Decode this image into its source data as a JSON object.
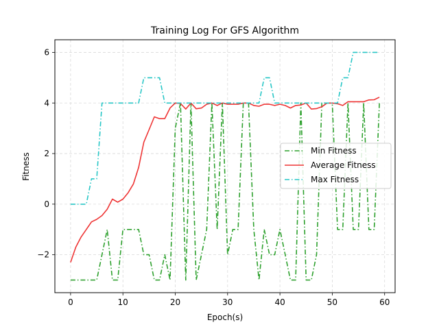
{
  "chart_data": {
    "type": "line",
    "title": "Training Log For GFS Algorithm",
    "xlabel": "Epoch(s)",
    "ylabel": "Fitness",
    "xlim": [
      -3,
      62
    ],
    "ylim": [
      -3.5,
      6.5
    ],
    "xticks": [
      0,
      10,
      20,
      30,
      40,
      50,
      60
    ],
    "yticks": [
      -2,
      0,
      2,
      4,
      6
    ],
    "grid": true,
    "legend_position": "center-right",
    "x": [
      0,
      1,
      2,
      3,
      4,
      5,
      6,
      7,
      8,
      9,
      10,
      11,
      12,
      13,
      14,
      15,
      16,
      17,
      18,
      19,
      20,
      21,
      22,
      23,
      24,
      25,
      26,
      27,
      28,
      29,
      30,
      31,
      32,
      33,
      34,
      35,
      36,
      37,
      38,
      39,
      40,
      41,
      42,
      43,
      44,
      45,
      46,
      47,
      48,
      49,
      50,
      51,
      52,
      53,
      54,
      55,
      56,
      57,
      58,
      59
    ],
    "series": [
      {
        "name": "Min Fitness",
        "color": "#2ca02c",
        "dash": "dashdot",
        "values": [
          -3,
          -3,
          -3,
          -3,
          -3,
          -3,
          -2,
          -1,
          -3,
          -3,
          -1,
          -1,
          -1,
          -1,
          -2,
          -2,
          -3,
          -3,
          -2,
          -3,
          3,
          4,
          -3,
          4,
          -3,
          -2,
          -1,
          4,
          -1,
          4,
          -2,
          -1,
          -1,
          4,
          4,
          -1,
          -3,
          -1,
          -2,
          -2,
          -1,
          -2,
          -3,
          -3,
          4,
          -3,
          -3,
          -2,
          4,
          4,
          4,
          -1,
          -1,
          4,
          -1,
          -1,
          4,
          -1,
          -1,
          4
        ]
      },
      {
        "name": "Average Fitness",
        "color": "#ee3333",
        "dash": "solid",
        "values": [
          -2.3,
          -1.7,
          -1.3,
          -1.0,
          -0.7,
          -0.6,
          -0.45,
          -0.2,
          0.2,
          0.08,
          0.2,
          0.45,
          0.8,
          1.45,
          2.45,
          2.95,
          3.45,
          3.38,
          3.38,
          3.8,
          4.0,
          3.98,
          3.76,
          4.0,
          3.77,
          3.8,
          3.95,
          4.0,
          3.9,
          4.0,
          3.95,
          3.95,
          3.95,
          4.0,
          4.0,
          3.9,
          3.87,
          3.95,
          3.95,
          3.9,
          3.95,
          3.9,
          3.8,
          3.9,
          3.92,
          4.0,
          3.76,
          3.78,
          3.85,
          4.0,
          4.0,
          3.97,
          3.9,
          4.05,
          4.05,
          4.05,
          4.05,
          4.12,
          4.13,
          4.23
        ]
      },
      {
        "name": "Max Fitness",
        "color": "#26c6c6",
        "dash": "dashdot",
        "values": [
          0,
          0,
          0,
          0,
          1,
          1,
          4,
          4,
          4,
          4,
          4,
          4,
          4,
          4,
          5,
          5,
          5,
          5,
          4,
          4,
          4,
          4,
          4,
          4,
          4,
          4,
          4,
          4,
          4,
          4,
          4,
          4,
          4,
          4,
          4,
          4,
          4,
          5,
          5,
          4,
          4,
          4,
          4,
          4,
          4,
          4,
          4,
          4,
          4,
          4,
          4,
          4,
          5,
          5,
          6,
          6,
          6,
          6,
          6,
          6
        ]
      }
    ]
  }
}
